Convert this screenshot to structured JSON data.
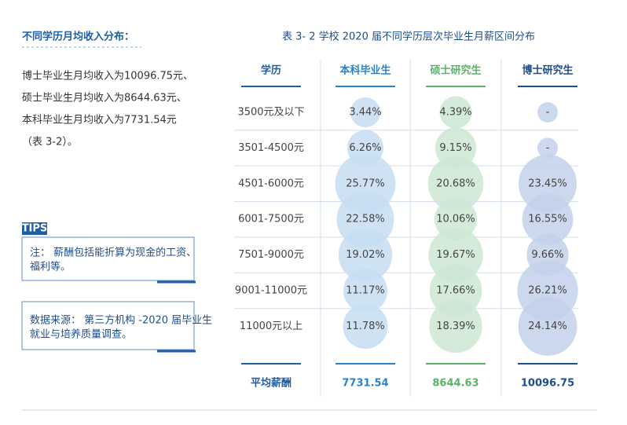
{
  "left": {
    "heading": "不同学历月均收入分布：",
    "lines": [
      "博士毕业生月均收入为10096.75元、",
      "硕士毕业生月均收入为8644.63元、",
      "本科毕业生月均收入为7731.54元",
      "（表 3-2）。"
    ]
  },
  "tips": {
    "label": "TIPS",
    "notes": [
      [
        "注： 薪酬包括能折算为现金的工资、",
        "福利等。"
      ],
      [
        "数据来源： 第三方机构 -2020 届毕业生",
        "就业与培养质量调查。"
      ]
    ]
  },
  "table": {
    "title": "表 3- 2  学校 2020 届不同学历层次毕业生月薪区间分布",
    "headers": [
      "学历",
      "本科毕业生",
      "硕士研究生",
      "博士研究生"
    ],
    "rows": [
      [
        "3500元及以下",
        "3.44%",
        "4.39%",
        "-"
      ],
      [
        "3501-4500元",
        "6.26%",
        "9.15%",
        "-"
      ],
      [
        "4501-6000元",
        "25.77%",
        "20.68%",
        "23.45%"
      ],
      [
        "6001-7500元",
        "22.58%",
        "10.06%",
        "16.55%"
      ],
      [
        "7501-9000元",
        "19.02%",
        "19.67%",
        "9.66%"
      ],
      [
        "9001-11000元",
        "11.17%",
        "17.66%",
        "26.21%"
      ],
      [
        "11000元以上",
        "11.78%",
        "18.39%",
        "24.14%"
      ]
    ],
    "footer": [
      "平均薪酬",
      "7731.54",
      "8644.63",
      "10096.75"
    ]
  }
}
